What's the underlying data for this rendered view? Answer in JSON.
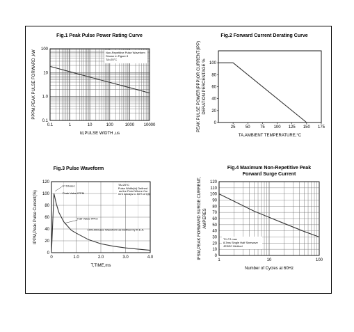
{
  "chart_data": [
    {
      "type": "line",
      "title": "Fig.1 Peak Pulse Power Rating Curve",
      "xlabel": "td,PULSE WIDTH ,us",
      "ylabel": "PPPM,PEAK PULSE FORWARD ,kW",
      "x_scale": "log",
      "y_scale": "log",
      "xlim": [
        0.1,
        10000
      ],
      "ylim": [
        0.1,
        100
      ],
      "x_ticks": [
        "0.1",
        "1",
        "10",
        "100",
        "1000",
        "10000"
      ],
      "y_ticks": [
        "100",
        "10",
        "1.0",
        "0.1"
      ],
      "grid": true,
      "note": "Non-Repetitive Pulse Waveform Shown in Figure.3 TA=25°C",
      "series": [
        {
          "x": [
            0.1,
            1,
            10,
            100,
            1000,
            10000
          ],
          "y": [
            18.2,
            10.9,
            6.5,
            3.9,
            2.35,
            1.4
          ]
        }
      ]
    },
    {
      "type": "line",
      "title": "Fig.2 Forward Current Derating Curve",
      "xlabel": "TA,AMBIENT TEMPERATURE,°C",
      "ylabel": "PEAK PULSE POWER(PPP)OR CURRENT(IPP) DERATION PERCENTAGE %",
      "xlim": [
        0,
        175
      ],
      "ylim": [
        0,
        120
      ],
      "x_ticks": [
        "25",
        "50",
        "75",
        "100",
        "125",
        "150",
        "175"
      ],
      "y_ticks": [
        "0",
        "20",
        "40",
        "60",
        "80",
        "100"
      ],
      "grid": false,
      "series": [
        {
          "x": [
            0,
            25,
            150
          ],
          "y": [
            100,
            100,
            0
          ]
        }
      ]
    },
    {
      "type": "line",
      "title": "Fig.3 Pulse Waveform",
      "xlabel": "T,TIME,ms",
      "ylabel": "IPPM,Peak Pulse Current(%)",
      "xlim": [
        0,
        4.0
      ],
      "ylim": [
        0,
        120
      ],
      "x_ticks": [
        "0",
        "1.0",
        "2.0",
        "3.0",
        "4.0"
      ],
      "y_ticks": [
        "0",
        "20",
        "40",
        "60",
        "80",
        "100",
        "120"
      ],
      "grid": true,
      "annotations": [
        "tr=10usec",
        "Peak Value IPPM",
        "Half Value-IPP/2",
        "10X1000usec Waveform as Defined by R.E.A.",
        "TA=25°C",
        "Pulse Width(td) Defined as the Point Where Current Decays to 50% of Ipp"
      ],
      "series": [
        {
          "x": [
            0,
            0.1,
            0.2,
            0.3,
            0.5,
            0.8,
            1.0,
            1.5,
            2.0,
            2.5,
            3.0,
            3.5,
            4.0
          ],
          "y": [
            0,
            100,
            82,
            68,
            52,
            38,
            33,
            22,
            15,
            11,
            8,
            6,
            4
          ]
        }
      ]
    },
    {
      "type": "line",
      "title": "Fig.4 Maximum Non-Repetitive Peak Forward Surge Current",
      "xlabel": "Number of Cycles at 60Hz",
      "ylabel": "IFSM,PEAK FORWARD SURGE CURRENT, AMPERES",
      "x_scale": "log",
      "xlim": [
        1,
        100
      ],
      "ylim": [
        0,
        120
      ],
      "x_ticks": [
        "1",
        "10",
        "100"
      ],
      "y_ticks": [
        "0",
        "10",
        "20",
        "30",
        "40",
        "50",
        "60",
        "70",
        "80",
        "90",
        "100",
        "110",
        "120"
      ],
      "grid": true,
      "note": "TJ=TJ max 8.3ms Single Half Sinewave JEDEC Method",
      "series": [
        {
          "x": [
            1,
            2,
            5,
            10,
            20,
            50,
            100
          ],
          "y": [
            100,
            88,
            72,
            62,
            52,
            39,
            30
          ]
        }
      ]
    }
  ]
}
